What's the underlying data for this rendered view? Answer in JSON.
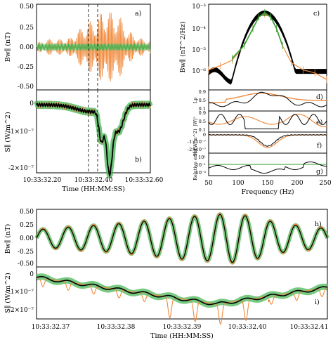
{
  "chart_data": [
    {
      "panel": "a)",
      "type": "line",
      "ylabel": "Bw∥ (nT)",
      "x_ticks": [],
      "y_ticks": [
        "0.50",
        "0.25",
        "0.00",
        "-0.25",
        "-0.50"
      ],
      "ylim": [
        -0.55,
        0.55
      ],
      "series": [
        {
          "color": "#f08a3c",
          "envelope": [
            [
              0,
              0.05
            ],
            [
              10,
              0.1
            ],
            [
              20,
              0.1
            ],
            [
              30,
              0.12
            ],
            [
              35,
              0.2
            ],
            [
              45,
              0.32
            ],
            [
              52,
              0.36
            ],
            [
              58,
              0.47
            ],
            [
              62,
              0.5
            ],
            [
              65,
              0.45
            ],
            [
              72,
              0.43
            ],
            [
              80,
              0.22
            ],
            [
              90,
              0.12
            ],
            [
              100,
              0.08
            ]
          ]
        },
        {
          "color": "#2e9e2e",
          "envelope": [
            [
              0,
              0.04
            ],
            [
              40,
              0.04
            ],
            [
              100,
              0.04
            ]
          ]
        }
      ],
      "dashed_vlines_frac": [
        0.46,
        0.54
      ]
    },
    {
      "panel": "b)",
      "type": "line",
      "ylabel": "S∥ (W/m^2)",
      "x_ticks": [
        "10:33:32.20",
        "10:33:32.40",
        "10:33:32.60"
      ],
      "xlabel": "Time (HH:MM:SS)",
      "y_ticks": [
        "0",
        "-1×10⁻⁷",
        "-2×10⁻⁷"
      ],
      "ylim": [
        -2.5e-07,
        2e-08
      ]
    },
    {
      "panel": "c)",
      "type": "line",
      "ylabel": "Bw∥ (nT^2/Hz)",
      "yscale": "log",
      "y_ticks": [
        "10⁻³",
        "10⁻⁴",
        "10⁻⁵",
        "10⁻⁶"
      ],
      "ylim": [
        3e-07,
        0.001
      ],
      "series": [
        {
          "color": "#f08a3c",
          "x": [
            50,
            70,
            90,
            110,
            125,
            135,
            145,
            155,
            165,
            175,
            190,
            210,
            230,
            250
          ],
          "y": [
            2e-06,
            3e-06,
            5e-06,
            2e-05,
            0.0001,
            0.0003,
            0.0004,
            0.0003,
            0.0001,
            2e-05,
            4e-06,
            2e-06,
            1.5e-06,
            8e-07
          ]
        },
        {
          "color": "#2e9e2e",
          "x": [
            90,
            110,
            125,
            135,
            145,
            155,
            165,
            175
          ],
          "y": [
            6e-06,
            2e-05,
            0.0001,
            0.0003,
            0.00045,
            0.0003,
            0.0001,
            2e-05
          ]
        }
      ]
    },
    {
      "panel": "d)",
      "ylabel": "Lp",
      "y_ticks": [
        "0.9",
        "0.5",
        "0.1"
      ]
    },
    {
      "panel": "e)",
      "ylabel": "|W|²",
      "y_ticks": [
        "0.9",
        "0.5",
        "0.1"
      ]
    },
    {
      "panel": "f)",
      "ylabel": "S∥ (W/m^2)",
      "y_ticks": [
        "0",
        "-1×10⁻⁷",
        "-2×10⁻⁷"
      ]
    },
    {
      "panel": "g)",
      "ylabel": "Relative error",
      "yscale": "log",
      "y_ticks": [
        "10¹",
        "10⁻¹",
        "10⁻³"
      ],
      "x_ticks": [
        "50",
        "100",
        "150",
        "200",
        "250"
      ],
      "xlabel": "Frequency (Hz)"
    },
    {
      "panel": "h)",
      "type": "line",
      "ylabel": "Bw∥ (nT)",
      "y_ticks": [
        "0.50",
        "0.25",
        "0.00",
        "-0.25",
        "-0.50"
      ],
      "ylim": [
        -0.55,
        0.55
      ],
      "series": [
        {
          "color": "#f08a3c",
          "amplitudes": [
            0.18,
            0.22,
            0.25,
            0.28,
            0.32,
            0.37,
            0.42,
            0.45,
            0.5,
            0.42,
            0.3,
            0.25,
            0.2
          ]
        },
        {
          "color": "#2e9e2e",
          "amplitudes": [
            0.16,
            0.2,
            0.23,
            0.26,
            0.3,
            0.35,
            0.4,
            0.43,
            0.47,
            0.4,
            0.28,
            0.23,
            0.18
          ]
        }
      ]
    },
    {
      "panel": "i)",
      "type": "line",
      "ylabel": "S∥ (W/m^2)",
      "y_ticks": [
        "0",
        "-1×10⁻⁷",
        "-2×10⁻⁷"
      ],
      "x_ticks": [
        "10:33:32.37",
        "10:33:32.38",
        "10:33:32.39",
        "10:33:32.40",
        "10:33:32.41"
      ],
      "xlabel": "Time (HH:MM:SS)"
    }
  ],
  "colors": {
    "orange": "#f08a3c",
    "green": "#3fb34f",
    "black": "#000000"
  }
}
